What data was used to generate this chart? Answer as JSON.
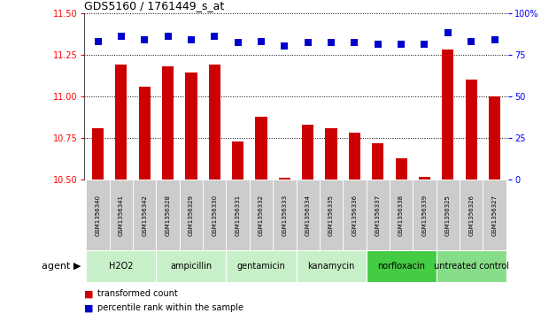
{
  "title": "GDS5160 / 1761449_s_at",
  "samples": [
    "GSM1356340",
    "GSM1356341",
    "GSM1356342",
    "GSM1356328",
    "GSM1356329",
    "GSM1356330",
    "GSM1356331",
    "GSM1356332",
    "GSM1356333",
    "GSM1356334",
    "GSM1356335",
    "GSM1356336",
    "GSM1356337",
    "GSM1356338",
    "GSM1356339",
    "GSM1356325",
    "GSM1356326",
    "GSM1356327"
  ],
  "bar_values": [
    10.81,
    11.19,
    11.06,
    11.18,
    11.14,
    11.19,
    10.73,
    10.88,
    10.51,
    10.83,
    10.81,
    10.78,
    10.72,
    10.63,
    10.52,
    11.28,
    11.1,
    11.0
  ],
  "percentile_values": [
    83,
    86,
    84,
    86,
    84,
    86,
    82,
    83,
    80,
    82,
    82,
    82,
    81,
    81,
    81,
    88,
    83,
    84
  ],
  "agents": [
    {
      "label": "H2O2",
      "start": 0,
      "end": 2,
      "color": "#c8f0c8"
    },
    {
      "label": "ampicillin",
      "start": 3,
      "end": 5,
      "color": "#c8f0c8"
    },
    {
      "label": "gentamicin",
      "start": 6,
      "end": 8,
      "color": "#c8f0c8"
    },
    {
      "label": "kanamycin",
      "start": 9,
      "end": 11,
      "color": "#c8f0c8"
    },
    {
      "label": "norfloxacin",
      "start": 12,
      "end": 14,
      "color": "#44cc44"
    },
    {
      "label": "untreated control",
      "start": 15,
      "end": 17,
      "color": "#88dd88"
    }
  ],
  "bar_color": "#cc0000",
  "dot_color": "#0000cc",
  "ylim_left": [
    10.5,
    11.5
  ],
  "yticks_left": [
    10.5,
    10.75,
    11.0,
    11.25,
    11.5
  ],
  "ylim_right": [
    0,
    100
  ],
  "yticks_right": [
    0,
    25,
    50,
    75,
    100
  ],
  "yticklabels_right": [
    "0",
    "25",
    "50",
    "75",
    "100%"
  ],
  "bar_width": 0.5,
  "dot_size": 40,
  "legend_bar_label": "transformed count",
  "legend_dot_label": "percentile rank within the sample",
  "agent_row_label": "agent",
  "background_color": "#ffffff",
  "sample_box_color": "#cccccc",
  "title_fontsize": 9,
  "tick_fontsize": 7,
  "sample_fontsize": 5,
  "agent_fontsize": 7,
  "legend_fontsize": 7
}
